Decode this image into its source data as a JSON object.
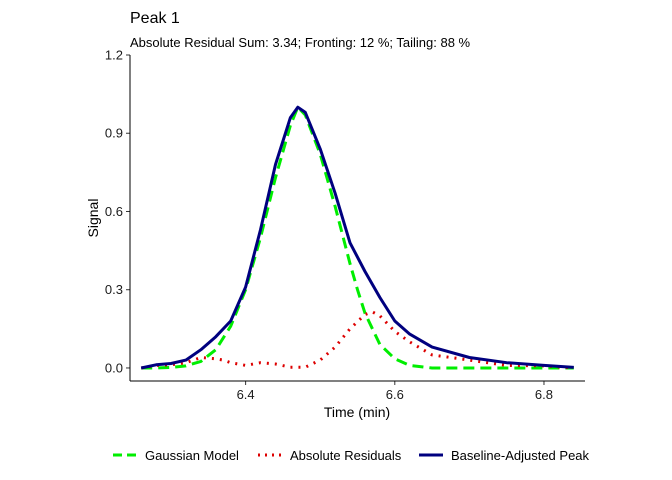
{
  "chart_data": {
    "type": "line",
    "title": "Peak 1",
    "subtitle": "Absolute Residual Sum: 3.34; Fronting: 12 %; Tailing: 88 %",
    "xlabel": "Time (min)",
    "ylabel": "Signal",
    "xlim": [
      6.245,
      6.855
    ],
    "ylim": [
      -0.05,
      1.2
    ],
    "x_ticks": [
      6.4,
      6.6,
      6.8
    ],
    "x_tick_labels": [
      "6.4",
      "6.6",
      "6.8"
    ],
    "y_ticks": [
      0.0,
      0.3,
      0.6,
      0.9,
      1.2
    ],
    "y_tick_labels": [
      "0.0",
      "0.3",
      "0.6",
      "0.9",
      "1.2"
    ],
    "grid": false,
    "legend_position": "bottom",
    "series": [
      {
        "name": "Gaussian Model",
        "color": "#00ee00",
        "style": "dashed",
        "x": [
          6.26,
          6.28,
          6.3,
          6.32,
          6.34,
          6.36,
          6.38,
          6.4,
          6.42,
          6.44,
          6.46,
          6.47,
          6.48,
          6.5,
          6.52,
          6.54,
          6.55,
          6.56,
          6.58,
          6.6,
          6.62,
          6.65,
          6.7,
          6.75,
          6.8,
          6.84
        ],
        "y": [
          0.0,
          0.0,
          0.002,
          0.008,
          0.025,
          0.07,
          0.16,
          0.3,
          0.5,
          0.73,
          0.93,
          1.0,
          0.97,
          0.82,
          0.62,
          0.4,
          0.3,
          0.21,
          0.09,
          0.035,
          0.01,
          0.0,
          0.0,
          0.0,
          0.0,
          0.0
        ]
      },
      {
        "name": "Absolute Residuals",
        "color": "#dd0000",
        "style": "dotted",
        "x": [
          6.26,
          6.28,
          6.3,
          6.32,
          6.34,
          6.36,
          6.37,
          6.38,
          6.4,
          6.42,
          6.44,
          6.46,
          6.48,
          6.5,
          6.52,
          6.54,
          6.56,
          6.57,
          6.58,
          6.6,
          6.62,
          6.65,
          6.7,
          6.75,
          6.8,
          6.84
        ],
        "y": [
          0.0,
          0.01,
          0.012,
          0.02,
          0.04,
          0.035,
          0.03,
          0.02,
          0.01,
          0.02,
          0.015,
          0.003,
          0.003,
          0.03,
          0.08,
          0.15,
          0.205,
          0.215,
          0.2,
          0.14,
          0.1,
          0.05,
          0.03,
          0.01,
          0.008,
          0.0
        ]
      },
      {
        "name": "Baseline-Adjusted Peak",
        "color": "#00007f",
        "style": "solid",
        "x": [
          6.26,
          6.28,
          6.3,
          6.32,
          6.34,
          6.36,
          6.38,
          6.4,
          6.42,
          6.44,
          6.46,
          6.47,
          6.48,
          6.5,
          6.52,
          6.54,
          6.56,
          6.58,
          6.6,
          6.62,
          6.65,
          6.7,
          6.75,
          6.8,
          6.84
        ],
        "y": [
          0.0,
          0.012,
          0.017,
          0.03,
          0.07,
          0.12,
          0.18,
          0.31,
          0.53,
          0.78,
          0.96,
          1.0,
          0.98,
          0.84,
          0.67,
          0.48,
          0.37,
          0.27,
          0.18,
          0.13,
          0.08,
          0.04,
          0.02,
          0.01,
          0.002
        ]
      }
    ]
  }
}
